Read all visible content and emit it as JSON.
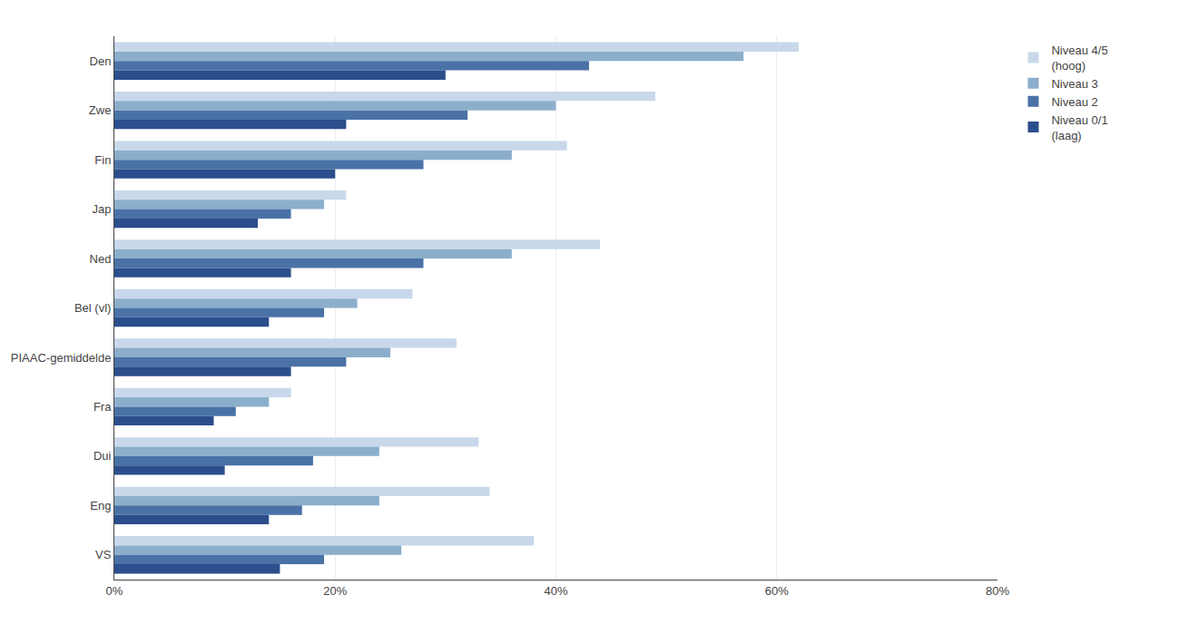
{
  "chart_data": {
    "type": "bar",
    "orientation": "horizontal",
    "categories": [
      "Den",
      "Zwe",
      "Fin",
      "Jap",
      "Ned",
      "Bel (vl)",
      "PIAAC-gemiddelde",
      "Fra",
      "Dui",
      "Eng",
      "VS"
    ],
    "series": [
      {
        "name": "Niveau 4/5\n(hoog)",
        "color": "#C8D8EA",
        "values": [
          62,
          49,
          41,
          21,
          44,
          27,
          31,
          16,
          33,
          34,
          38
        ]
      },
      {
        "name": "Niveau 3",
        "color": "#8BAECB",
        "values": [
          57,
          40,
          36,
          19,
          36,
          22,
          25,
          14,
          24,
          24,
          26
        ]
      },
      {
        "name": "Niveau 2",
        "color": "#4A72A6",
        "values": [
          43,
          32,
          28,
          16,
          28,
          19,
          21,
          11,
          18,
          17,
          19
        ]
      },
      {
        "name": "Niveau 0/1\n(laag)",
        "color": "#2B4E8C",
        "values": [
          30,
          21,
          20,
          13,
          16,
          14,
          16,
          9,
          10,
          14,
          15
        ]
      }
    ],
    "xlim": [
      0,
      80
    ],
    "xticks": [
      {
        "value": 0,
        "label": "0%"
      },
      {
        "value": 20,
        "label": "20%"
      },
      {
        "value": 40,
        "label": "40%"
      },
      {
        "value": 60,
        "label": "60%"
      },
      {
        "value": 80,
        "label": "80%"
      }
    ],
    "grid": true,
    "legend": "upper right"
  }
}
